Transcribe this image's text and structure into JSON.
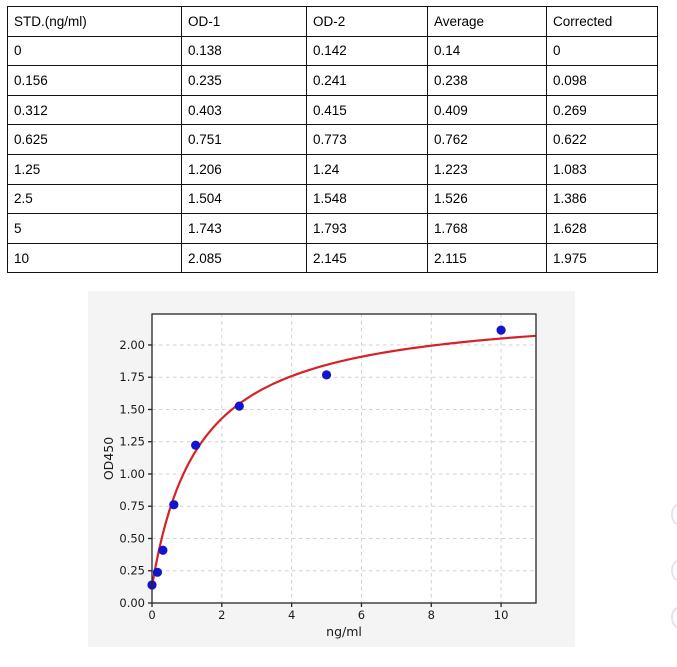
{
  "table": {
    "headers": [
      "STD.(ng/ml)",
      "OD-1",
      "OD-2",
      "Average",
      "Corrected"
    ],
    "rows": [
      [
        "0",
        "0.138",
        "0.142",
        "0.14",
        "0"
      ],
      [
        "0.156",
        "0.235",
        "0.241",
        "0.238",
        "0.098"
      ],
      [
        "0.312",
        "0.403",
        "0.415",
        "0.409",
        "0.269"
      ],
      [
        "0.625",
        "0.751",
        "0.773",
        "0.762",
        "0.622"
      ],
      [
        "1.25",
        "1.206",
        "1.24",
        "1.223",
        "1.083"
      ],
      [
        "2.5",
        "1.504",
        "1.548",
        "1.526",
        "1.386"
      ],
      [
        "5",
        "1.743",
        "1.793",
        "1.768",
        "1.628"
      ],
      [
        "10",
        "2.085",
        "2.145",
        "2.115",
        "1.975"
      ]
    ]
  },
  "chart_data": {
    "type": "scatter",
    "title": "",
    "xlabel": "ng/ml",
    "ylabel": "OD450",
    "xlim": [
      0,
      11
    ],
    "ylim": [
      0,
      2.24
    ],
    "x_ticks": [
      0,
      2,
      4,
      6,
      8,
      10
    ],
    "y_ticks": [
      0,
      0.25,
      0.5,
      0.75,
      1,
      1.25,
      1.5,
      1.75,
      2
    ],
    "grid": "dashed",
    "legend": "none",
    "series": [
      {
        "name": "standard-points",
        "type": "scatter",
        "color": "#1414cd",
        "x": [
          0,
          0.156,
          0.312,
          0.625,
          1.25,
          2.5,
          5,
          10
        ],
        "y": [
          0.14,
          0.238,
          0.409,
          0.762,
          1.223,
          1.526,
          1.768,
          2.115
        ]
      },
      {
        "name": "fit-curve",
        "type": "line",
        "color": "#d62226",
        "model": "y = y0 + a*x/(b+x)",
        "params": {
          "y0": 0.13,
          "a": 2.18,
          "b": 1.354
        }
      }
    ],
    "colors": {
      "figure_bg": "#f4f4f4",
      "plot_bg": "#ffffff",
      "grid": "#cdd0d4",
      "axis": "#262626",
      "text": "#1a1a1a"
    }
  }
}
